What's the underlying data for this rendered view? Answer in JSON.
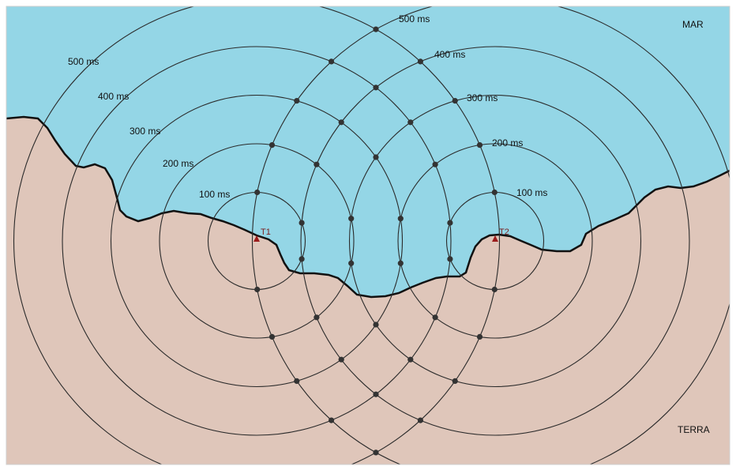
{
  "region_labels": {
    "sea": "MAR",
    "land": "TERRA"
  },
  "colors": {
    "sea": "#94d6e6",
    "land": "#dfc6ba",
    "coast": "#111111",
    "circle": "#2a2a2a",
    "transmitter": "#9b1b1b",
    "node": "#333333"
  },
  "transmitters": [
    {
      "id": "T1",
      "label": "T1"
    },
    {
      "id": "T2",
      "label": "T2"
    }
  ],
  "ranges": [
    {
      "label": "100 ms"
    },
    {
      "label": "200 ms"
    },
    {
      "label": "300 ms"
    },
    {
      "label": "400 ms"
    },
    {
      "label": "500 ms"
    }
  ]
}
